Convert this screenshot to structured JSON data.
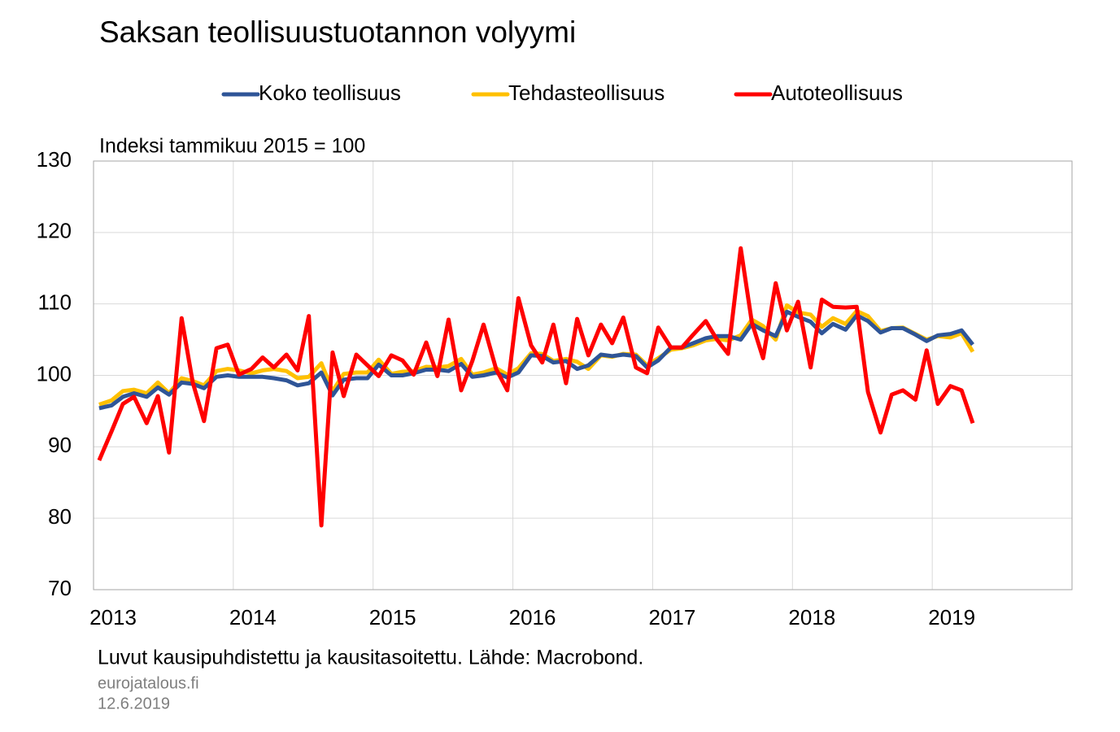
{
  "chart_data": {
    "type": "line",
    "title": "Saksan teollisuustuotannon volyymi",
    "y_label": "Indeksi tammikuu 2015 = 100",
    "footnote": "Luvut kausipuhdistettu ja kausitasoitettu. Lähde: Macrobond.",
    "source": "eurojatalous.fi",
    "date": "12.6.2019",
    "xlim": [
      2013,
      2020
    ],
    "xticks": [
      2013,
      2014,
      2015,
      2016,
      2017,
      2018,
      2019
    ],
    "ylim": [
      70,
      130
    ],
    "yticks": [
      70,
      80,
      90,
      100,
      110,
      120,
      130
    ],
    "grid": true,
    "legend": "top",
    "x": [
      2013.04,
      2013.13,
      2013.21,
      2013.29,
      2013.38,
      2013.46,
      2013.54,
      2013.63,
      2013.71,
      2013.79,
      2013.88,
      2013.96,
      2014.04,
      2014.13,
      2014.21,
      2014.29,
      2014.38,
      2014.46,
      2014.54,
      2014.63,
      2014.71,
      2014.79,
      2014.88,
      2014.96,
      2015.04,
      2015.13,
      2015.21,
      2015.29,
      2015.38,
      2015.46,
      2015.54,
      2015.63,
      2015.71,
      2015.79,
      2015.88,
      2015.96,
      2016.04,
      2016.13,
      2016.21,
      2016.29,
      2016.38,
      2016.46,
      2016.54,
      2016.63,
      2016.71,
      2016.79,
      2016.88,
      2016.96,
      2017.04,
      2017.13,
      2017.21,
      2017.29,
      2017.38,
      2017.46,
      2017.54,
      2017.63,
      2017.71,
      2017.79,
      2017.88,
      2017.96,
      2018.04,
      2018.13,
      2018.21,
      2018.29,
      2018.38,
      2018.46,
      2018.54,
      2018.63,
      2018.71,
      2018.79,
      2018.88,
      2018.96,
      2019.04,
      2019.13,
      2019.21,
      2019.29
    ],
    "series": [
      {
        "name": "Koko teollisuus",
        "color": "#2f5597",
        "values": [
          95.4,
          95.8,
          97.0,
          97.5,
          97.0,
          98.3,
          97.3,
          99.0,
          98.8,
          98.2,
          99.8,
          100.0,
          99.8,
          99.8,
          99.8,
          99.6,
          99.3,
          98.6,
          98.9,
          100.4,
          97.2,
          99.4,
          99.6,
          99.6,
          101.5,
          100.0,
          100.0,
          100.3,
          100.8,
          100.8,
          100.6,
          101.6,
          99.8,
          100.0,
          100.4,
          99.7,
          100.4,
          102.8,
          102.7,
          101.8,
          102.0,
          100.9,
          101.4,
          102.9,
          102.7,
          102.9,
          102.7,
          101.1,
          102.1,
          103.9,
          103.9,
          104.5,
          105.2,
          105.5,
          105.5,
          105.0,
          107.2,
          106.3,
          105.5,
          108.9,
          108.2,
          107.5,
          105.9,
          107.2,
          106.4,
          108.4,
          107.6,
          106.0,
          106.6,
          106.6,
          105.7,
          104.8,
          105.6,
          105.8,
          106.3,
          104.3
        ]
      },
      {
        "name": "Tehdasteollisuus",
        "color": "#ffc000",
        "values": [
          95.9,
          96.5,
          97.8,
          98.0,
          97.5,
          99.0,
          97.5,
          99.6,
          99.2,
          98.6,
          100.6,
          100.9,
          100.7,
          100.3,
          100.7,
          100.9,
          100.6,
          99.6,
          99.8,
          101.7,
          97.8,
          100.2,
          100.4,
          100.4,
          102.2,
          100.2,
          100.5,
          100.6,
          101.2,
          101.1,
          101.3,
          102.3,
          100.1,
          100.4,
          101.0,
          100.1,
          101.0,
          103.1,
          103.0,
          102.0,
          102.3,
          101.9,
          100.9,
          102.8,
          102.6,
          103.0,
          102.9,
          101.4,
          102.4,
          103.6,
          103.8,
          104.2,
          104.9,
          105.1,
          104.9,
          105.6,
          107.8,
          106.9,
          105.0,
          109.8,
          108.8,
          108.5,
          106.8,
          108.0,
          107.2,
          109.0,
          108.3,
          106.2,
          106.6,
          106.7,
          105.8,
          105.0,
          105.5,
          105.3,
          105.9,
          103.3
        ]
      },
      {
        "name": "Autoteollisuus",
        "color": "#ff0000",
        "values": [
          88.1,
          92.2,
          96.0,
          97.0,
          93.3,
          97.1,
          89.2,
          108.0,
          99.0,
          93.6,
          103.8,
          104.3,
          100.1,
          100.9,
          102.5,
          101.1,
          102.9,
          100.7,
          108.3,
          79.0,
          103.2,
          97.1,
          102.9,
          101.4,
          99.9,
          102.8,
          102.1,
          100.1,
          104.6,
          99.9,
          107.8,
          97.9,
          102.0,
          107.1,
          100.9,
          97.9,
          110.8,
          104.2,
          101.8,
          107.1,
          98.9,
          107.9,
          102.8,
          107.1,
          104.5,
          108.1,
          101.1,
          100.3,
          106.7,
          103.9,
          103.9,
          105.7,
          107.6,
          105.0,
          103.0,
          117.8,
          107.4,
          102.4,
          112.9,
          106.3,
          110.3,
          101.1,
          110.6,
          109.6,
          109.5,
          109.6,
          97.7,
          92.0,
          97.3,
          97.9,
          96.6,
          103.5,
          96.0,
          98.5,
          97.9,
          93.3
        ]
      }
    ]
  }
}
